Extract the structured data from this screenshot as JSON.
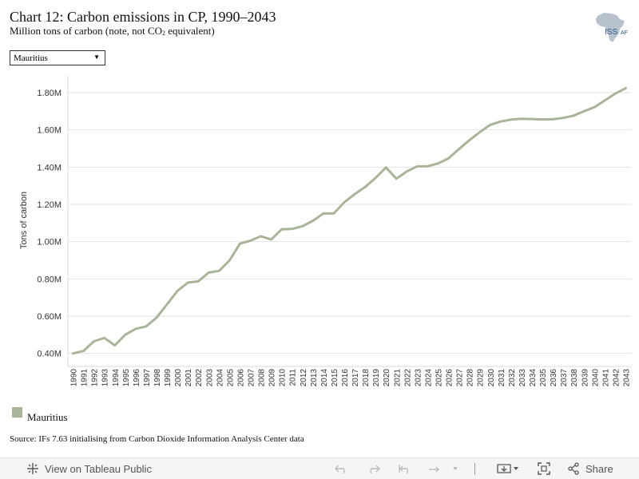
{
  "header": {
    "title": "Chart 12: Carbon emissions in CP, 1990–2043",
    "subtitle_pre": "Million tons of carbon (note, not CO",
    "subtitle_sub": "2",
    "subtitle_post": " equivalent)",
    "logo_text_iss": "ISS",
    "logo_text_af": "AF"
  },
  "filter": {
    "selected": "Mauritius"
  },
  "legend": {
    "label": "Mauritius",
    "color": "#a8b598"
  },
  "source": "Source: IFs 7.63 initialising from Carbon Dioxide Information Analysis Center data",
  "toolbar": {
    "view_label": "View on Tableau Public",
    "share_label": "Share"
  },
  "chart_data": {
    "type": "line",
    "ylabel": "Tons of carbon",
    "xlabel": "",
    "ylim": [
      330000,
      1890000
    ],
    "yticks": [
      400000,
      600000,
      800000,
      1000000,
      1200000,
      1400000,
      1600000,
      1800000
    ],
    "ytick_labels": [
      "0.40M",
      "0.60M",
      "0.80M",
      "1.00M",
      "1.20M",
      "1.40M",
      "1.60M",
      "1.80M"
    ],
    "grid": true,
    "line_color": "#a8b598",
    "categories": [
      "1990",
      "1991",
      "1992",
      "1993",
      "1994",
      "1995",
      "1996",
      "1997",
      "1998",
      "1999",
      "2000",
      "2001",
      "2002",
      "2003",
      "2004",
      "2005",
      "2006",
      "2007",
      "2008",
      "2009",
      "2010",
      "2011",
      "2012",
      "2013",
      "2014",
      "2015",
      "2016",
      "2017",
      "2018",
      "2019",
      "2020",
      "2021",
      "2022",
      "2023",
      "2024",
      "2025",
      "2026",
      "2027",
      "2028",
      "2029",
      "2030",
      "2031",
      "2032",
      "2033",
      "2034",
      "2035",
      "2036",
      "2037",
      "2038",
      "2039",
      "2040",
      "2041",
      "2042",
      "2043"
    ],
    "series": [
      {
        "name": "Mauritius",
        "values": [
          400000,
          413000,
          465000,
          483000,
          443000,
          500000,
          532000,
          545000,
          592000,
          663000,
          735000,
          780000,
          787000,
          834000,
          843000,
          899000,
          989000,
          1005000,
          1029000,
          1012000,
          1066000,
          1068000,
          1083000,
          1112000,
          1151000,
          1151000,
          1211000,
          1255000,
          1293000,
          1342000,
          1398000,
          1338000,
          1377000,
          1404000,
          1405000,
          1420000,
          1447000,
          1497000,
          1544000,
          1588000,
          1627000,
          1645000,
          1655000,
          1660000,
          1658000,
          1656000,
          1657000,
          1664000,
          1676000,
          1700000,
          1722000,
          1759000,
          1795000,
          1824000
        ]
      }
    ]
  }
}
